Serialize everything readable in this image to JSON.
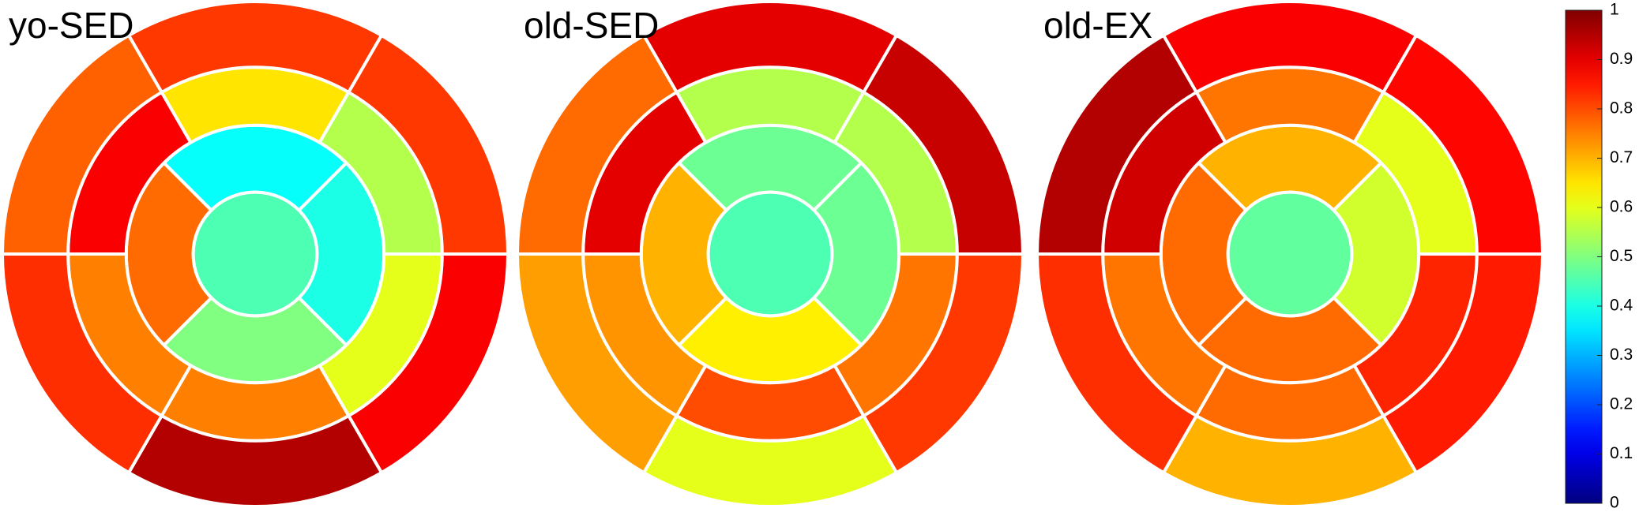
{
  "chart_data": [
    {
      "type": "bullseye",
      "title": "yo-SED",
      "center": 0.45,
      "rings": [
        {
          "values": [
            0.38,
            0.4,
            0.5,
            0.77
          ]
        },
        {
          "values": [
            0.65,
            0.55,
            0.6,
            0.75,
            0.75,
            0.88
          ]
        },
        {
          "values": [
            0.82,
            0.82,
            0.88,
            0.95,
            0.83,
            0.78
          ]
        }
      ]
    },
    {
      "type": "bullseye",
      "title": "old-SED",
      "center": 0.45,
      "rings": [
        {
          "values": [
            0.48,
            0.48,
            0.64,
            0.7
          ]
        },
        {
          "values": [
            0.55,
            0.55,
            0.76,
            0.8,
            0.73,
            0.9
          ]
        },
        {
          "values": [
            0.9,
            0.93,
            0.82,
            0.6,
            0.72,
            0.77
          ]
        }
      ]
    },
    {
      "type": "bullseye",
      "title": "old-EX",
      "center": 0.47,
      "rings": [
        {
          "values": [
            0.7,
            0.58,
            0.77,
            0.77
          ]
        },
        {
          "values": [
            0.76,
            0.6,
            0.84,
            0.77,
            0.76,
            0.92
          ]
        },
        {
          "values": [
            0.88,
            0.87,
            0.85,
            0.7,
            0.83,
            0.95
          ]
        }
      ]
    },
    {
      "type": "colorbar",
      "colormap": "jet",
      "ylim": [
        0,
        1
      ],
      "yticks": [
        0,
        0.1,
        0.2,
        0.3,
        0.4,
        0.5,
        0.6,
        0.7,
        0.8,
        0.9,
        1
      ]
    }
  ]
}
